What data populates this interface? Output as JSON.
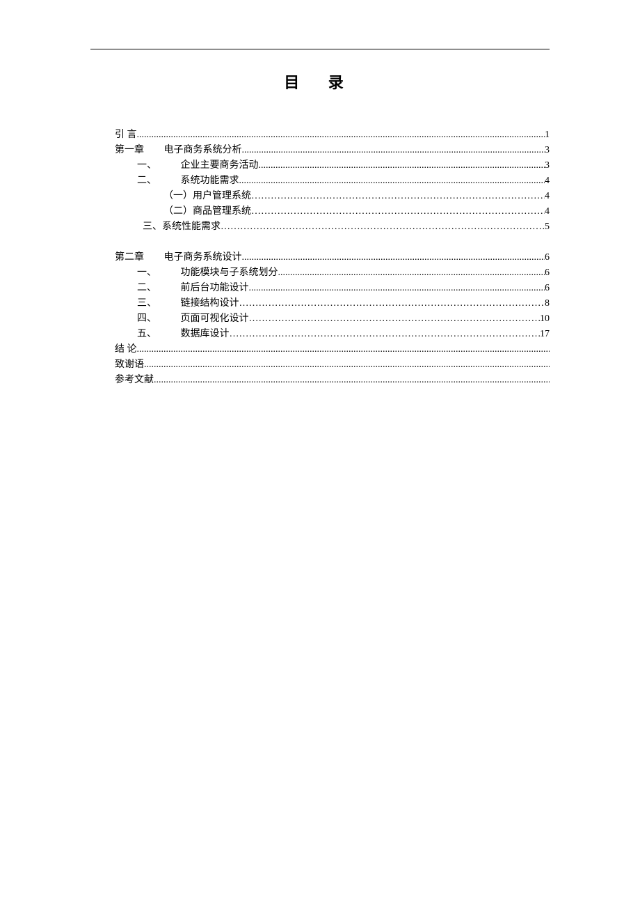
{
  "document": {
    "heading": "目  录",
    "font_family": "SimSun",
    "title_fontsize": 22,
    "body_fontsize": 14,
    "text_color": "#000000",
    "background_color": "#ffffff",
    "rule_color": "#000000",
    "leader_dense": "...........................................................................................................................................................................................",
    "leader_wide": "……………………………………………………………………………………………………………………………………",
    "entries": [
      {
        "id": "e0",
        "indent": "indent-0",
        "label": "引 言",
        "text": "",
        "page": "1",
        "leader_type": "dense",
        "label_class": ""
      },
      {
        "id": "e1",
        "indent": "indent-0",
        "label": "第一章",
        "text": "电子商务系统分析",
        "page": "3",
        "leader_type": "dense",
        "label_class": "label-col-wide",
        "label_gap": "   "
      },
      {
        "id": "e2",
        "indent": "indent-1",
        "label": "一、",
        "text": "企业主要商务活动",
        "page": "3",
        "leader_type": "dense",
        "label_class": "label-col-narrow",
        "label_gap": "   "
      },
      {
        "id": "e3",
        "indent": "indent-1",
        "label": "二、",
        "text": "系统功能需求",
        "page": "4",
        "leader_type": "dense",
        "label_class": "label-col-narrow",
        "label_gap": "   "
      },
      {
        "id": "e4",
        "indent": "indent-2",
        "label": "",
        "text": "（一）用户管理系统",
        "page": "4",
        "leader_type": "wide",
        "label_class": ""
      },
      {
        "id": "e5",
        "indent": "indent-2",
        "label": "",
        "text": "（二）商品管理系统",
        "page": "4",
        "leader_type": "wide",
        "label_class": ""
      },
      {
        "id": "e6",
        "indent": "indent-1b",
        "label": "三、",
        "text": "系统性能需求",
        "page": "5",
        "leader_type": "wide",
        "label_class": ""
      },
      {
        "id": "spacer1",
        "spacer": true
      },
      {
        "id": "e7",
        "indent": "indent-0",
        "label": "第二章",
        "text": "电子商务系统设计",
        "page": "6",
        "leader_type": "dense",
        "label_class": "label-col-wide",
        "label_gap": "   "
      },
      {
        "id": "e8",
        "indent": "indent-1",
        "label": "一、",
        "text": "功能模块与子系统划分",
        "page": "6",
        "leader_type": "dense",
        "label_class": "label-col-narrow",
        "label_gap": "   "
      },
      {
        "id": "e9",
        "indent": "indent-1",
        "label": "二、",
        "text": "前后台功能设计",
        "page": "6",
        "leader_type": "dense",
        "label_class": "label-col-narrow",
        "label_gap": "   "
      },
      {
        "id": "e10",
        "indent": "indent-1",
        "label": "三、",
        "text": "链接结构设计",
        "page": "8",
        "leader_type": "wide",
        "label_class": "label-col-narrow",
        "label_gap": "   "
      },
      {
        "id": "e11",
        "indent": "indent-1",
        "label": "四、",
        "text": "页面可视化设计",
        "page": "10",
        "leader_type": "wide",
        "label_class": "label-col-narrow",
        "label_gap": "   "
      },
      {
        "id": "e12",
        "indent": "indent-1",
        "label": "五、",
        "text": "数据库设计",
        "page": "17",
        "leader_type": "wide",
        "label_class": "label-col-narrow",
        "label_gap": "   "
      },
      {
        "id": "e13",
        "indent": "indent-0",
        "label": "结 论",
        "text": "",
        "page": "",
        "leader_type": "dense",
        "label_class": ""
      },
      {
        "id": "e14",
        "indent": "indent-0",
        "label": "致谢语",
        "text": "",
        "page": "",
        "leader_type": "dense",
        "label_class": ""
      },
      {
        "id": "e15",
        "indent": "indent-0",
        "label": "参考文献",
        "text": "",
        "page": "",
        "leader_type": "dense",
        "label_class": ""
      }
    ]
  }
}
